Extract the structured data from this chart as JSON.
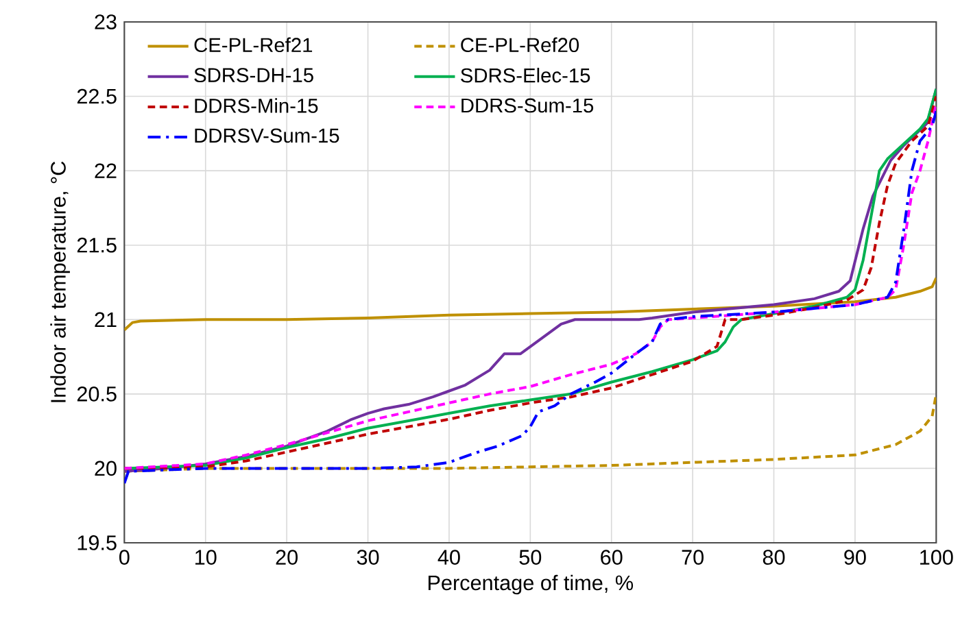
{
  "chart_data": {
    "type": "line",
    "xlabel": "Percentage of time, %",
    "ylabel": "Indoor air temperature, °C",
    "xlim": [
      0,
      100
    ],
    "xticks": [
      0,
      10,
      20,
      30,
      40,
      50,
      60,
      70,
      80,
      90,
      100
    ],
    "ylim": [
      19.5,
      23
    ],
    "yticks": [
      19.5,
      20,
      20.5,
      21,
      21.5,
      22,
      22.5,
      23
    ],
    "grid": true,
    "legend": "top left",
    "marker": "none",
    "series": [
      {
        "name": "CE-PL-Ref21",
        "color": "#bf9000",
        "line_style": "solid",
        "x": [
          0,
          1,
          2,
          10,
          20,
          30,
          40,
          50,
          60,
          70,
          80,
          90,
          95,
          98,
          99.5,
          100
        ],
        "values": [
          20.93,
          20.98,
          20.99,
          21.0,
          21.0,
          21.01,
          21.03,
          21.04,
          21.05,
          21.07,
          21.09,
          21.12,
          21.15,
          21.19,
          21.22,
          21.28
        ]
      },
      {
        "name": "CE-PL-Ref20",
        "color": "#bf9000",
        "line_style": "dashed",
        "x": [
          0,
          10,
          40,
          50,
          60,
          70,
          80,
          90,
          95,
          98,
          99.5,
          100
        ],
        "values": [
          19.98,
          20.0,
          20.0,
          20.01,
          20.02,
          20.04,
          20.06,
          20.09,
          20.16,
          20.25,
          20.35,
          20.5
        ]
      },
      {
        "name": "SDRS-DH-15",
        "color": "#7030a0",
        "line_style": "solid",
        "x": [
          0,
          5,
          10,
          15,
          20,
          25,
          28,
          30,
          32,
          35,
          38,
          40,
          42,
          45,
          46.8,
          48.8,
          53.8,
          55.5,
          63.4,
          65,
          70,
          80,
          85,
          88,
          89.4,
          91,
          92.2,
          94.4,
          96,
          98.9,
          100
        ],
        "values": [
          19.98,
          20.0,
          20.03,
          20.08,
          20.15,
          20.25,
          20.33,
          20.37,
          20.4,
          20.43,
          20.48,
          20.52,
          20.56,
          20.66,
          20.77,
          20.77,
          20.97,
          21.0,
          21.0,
          21.01,
          21.05,
          21.1,
          21.14,
          21.19,
          21.26,
          21.61,
          21.83,
          22.07,
          22.17,
          22.32,
          22.55
        ]
      },
      {
        "name": "SDRS-Elec-15",
        "color": "#00b050",
        "line_style": "solid",
        "x": [
          0,
          10,
          15,
          20,
          25,
          30,
          35,
          40,
          45,
          50,
          55,
          60,
          65,
          70,
          73,
          74,
          75,
          76,
          80,
          85,
          89,
          90,
          91,
          92,
          93,
          94,
          96,
          98,
          99,
          100
        ],
        "values": [
          20.0,
          20.02,
          20.07,
          20.14,
          20.2,
          20.27,
          20.32,
          20.37,
          20.42,
          20.46,
          20.5,
          20.58,
          20.65,
          20.73,
          20.79,
          20.85,
          20.95,
          21.0,
          21.04,
          21.09,
          21.15,
          21.2,
          21.4,
          21.7,
          22.0,
          22.08,
          22.18,
          22.28,
          22.35,
          22.55
        ]
      },
      {
        "name": "DDRS-Min-15",
        "color": "#c00000",
        "line_style": "dashed",
        "x": [
          0,
          10,
          15,
          20,
          25,
          30,
          35,
          40,
          45,
          50,
          55,
          60,
          65,
          70,
          73,
          74,
          76,
          80,
          85,
          89,
          91,
          92,
          93,
          94,
          95,
          97,
          99,
          100
        ],
        "values": [
          20.0,
          20.01,
          20.05,
          20.11,
          20.17,
          20.23,
          20.28,
          20.33,
          20.39,
          20.44,
          20.48,
          20.54,
          20.63,
          20.72,
          20.82,
          21.0,
          21.0,
          21.03,
          21.08,
          21.13,
          21.2,
          21.35,
          21.65,
          21.9,
          22.05,
          22.2,
          22.3,
          22.5
        ]
      },
      {
        "name": "DDRS-Sum-15",
        "color": "#ff00ff",
        "line_style": "dashed",
        "x": [
          0,
          10,
          15,
          20,
          25,
          30,
          35,
          40,
          45,
          50,
          55,
          60,
          63,
          65,
          66,
          67,
          70,
          80,
          90,
          94,
          95,
          96,
          97,
          98,
          99,
          100
        ],
        "values": [
          20.0,
          20.03,
          20.09,
          20.16,
          20.24,
          20.32,
          20.38,
          20.44,
          20.5,
          20.55,
          20.63,
          20.7,
          20.77,
          20.85,
          20.95,
          21.0,
          21.01,
          21.05,
          21.1,
          21.15,
          21.2,
          21.5,
          21.85,
          22.0,
          22.2,
          22.45
        ]
      },
      {
        "name": "DDRSV-Sum-15",
        "color": "#0000ff",
        "line_style": "dashdot",
        "x": [
          0,
          0.5,
          10,
          30,
          36,
          40,
          43,
          46,
          49,
          50,
          51,
          53,
          55,
          58,
          60,
          63,
          65,
          66,
          67,
          70,
          80,
          90,
          94,
          95,
          96,
          97,
          98,
          99.5,
          100
        ],
        "values": [
          19.9,
          19.98,
          20.0,
          20.0,
          20.01,
          20.04,
          20.1,
          20.15,
          20.22,
          20.28,
          20.38,
          20.42,
          20.5,
          20.58,
          20.64,
          20.77,
          20.85,
          20.97,
          21.0,
          21.02,
          21.05,
          21.1,
          21.15,
          21.25,
          21.6,
          22.0,
          22.2,
          22.3,
          22.4
        ]
      }
    ]
  }
}
